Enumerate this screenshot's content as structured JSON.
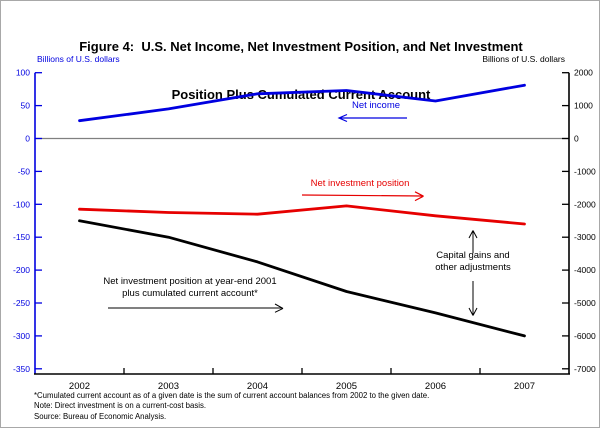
{
  "title": {
    "line1": "Figure 4:  U.S. Net Income, Net Investment Position, and Net Investment",
    "line2": "Position Plus Cumulated Current Account"
  },
  "chart_data": {
    "type": "line",
    "title": "Figure 4: U.S. Net Income, Net Investment Position, and Net Investment Position Plus Cumulated Current Account",
    "x_categories": [
      "2002",
      "2003",
      "2004",
      "2005",
      "2006",
      "2007"
    ],
    "axes": {
      "left": {
        "label": "Billions of U.S. dollars",
        "color": "#0000e0",
        "range": [
          -350,
          100
        ],
        "ticks": [
          100,
          50,
          0,
          -50,
          -100,
          -150,
          -200,
          -250,
          -300,
          -350
        ]
      },
      "right": {
        "label": "Billions of U.S. dollars",
        "color": "#000000",
        "range": [
          -7000,
          2000
        ],
        "ticks": [
          2000,
          1000,
          0,
          -1000,
          -2000,
          -3000,
          -4000,
          -5000,
          -6000,
          -7000
        ]
      }
    },
    "series": [
      {
        "name": "Net income",
        "axis": "left",
        "color": "#0000e0",
        "values": [
          27,
          45,
          68,
          73,
          57,
          81
        ]
      },
      {
        "name": "Net investment position",
        "axis": "right",
        "color": "#e60000",
        "values": [
          -2150,
          -2250,
          -2300,
          -2050,
          -2350,
          -2600
        ]
      },
      {
        "name": "Net investment position at year-end 2001 plus cumulated current account*",
        "axis": "right",
        "color": "#000000",
        "values": [
          -2500,
          -3000,
          -3750,
          -4650,
          -5300,
          -6000
        ]
      }
    ],
    "zero_line": true,
    "grid": false,
    "legend_position": "in-chart annotations"
  },
  "annotations": {
    "net_income": "Net income",
    "net_investment_position": "Net investment position",
    "capital_gains_line1": "Capital gains and",
    "capital_gains_line2": "other adjustments",
    "cumulated_line1": "Net investment position at year-end 2001",
    "cumulated_line2": "plus cumulated current account*"
  },
  "footnotes": [
    "*Cumulated current account as of a given date is the sum of current account balances from 2002 to the given date.",
    "Note: Direct investment is on a current-cost basis.",
    "Source: Bureau of Economic Analysis."
  ]
}
